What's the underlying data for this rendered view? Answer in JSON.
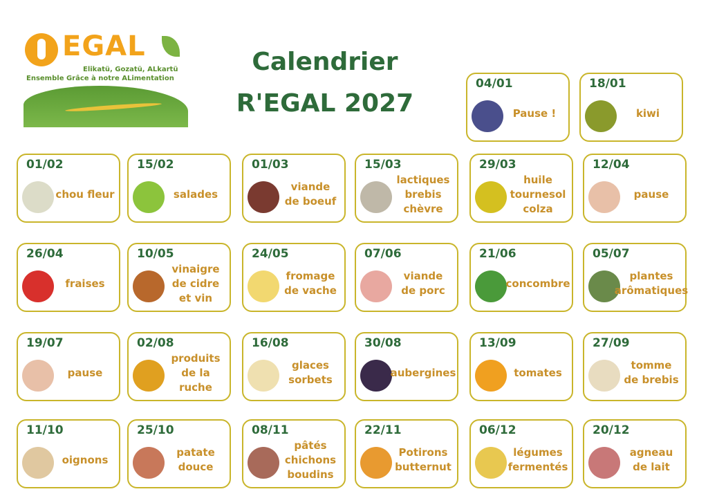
{
  "logo": {
    "brand": "EGAL",
    "tagline1": "Elikatü, Gozatü, ALkartü",
    "tagline2": "Ensemble Grâce à notre ALimentation"
  },
  "title": "Calendrier\nR'EGAL 2027",
  "colors": {
    "date": "#2e6b3a",
    "label": "#c8902a",
    "border": "#c9b52a"
  },
  "entries": [
    {
      "date": "04/01",
      "label": "Pause !",
      "icon": "snowman-icon",
      "color": "#4a4f8c"
    },
    {
      "date": "18/01",
      "label": "kiwi",
      "icon": "kiwi-icon",
      "color": "#8a9a2c"
    },
    {
      "date": "01/02",
      "label": "chou fleur",
      "icon": "cauliflower-icon",
      "color": "#dcdcc8"
    },
    {
      "date": "15/02",
      "label": "salades",
      "icon": "lettuce-icon",
      "color": "#8cc43c"
    },
    {
      "date": "01/03",
      "label": "viande\nde boeuf",
      "icon": "beef-icon",
      "color": "#7a3a30"
    },
    {
      "date": "15/03",
      "label": "lactiques\nbrebis\nchèvre",
      "icon": "cheese-icon",
      "color": "#bfb8a8"
    },
    {
      "date": "29/03",
      "label": "huile\ntournesol\ncolza",
      "icon": "oil-bottle-icon",
      "color": "#d4c020"
    },
    {
      "date": "12/04",
      "label": "pause",
      "icon": "pause-hands-icon",
      "color": "#e8c0a8"
    },
    {
      "date": "26/04",
      "label": "fraises",
      "icon": "strawberry-icon",
      "color": "#d8302c"
    },
    {
      "date": "10/05",
      "label": "vinaigre\nde cidre\net vin",
      "icon": "vinegar-icon",
      "color": "#b8682c"
    },
    {
      "date": "24/05",
      "label": "fromage\nde vache",
      "icon": "cheese-icon",
      "color": "#f2d870"
    },
    {
      "date": "07/06",
      "label": "viande\nde porc",
      "icon": "pork-icon",
      "color": "#e8a8a0"
    },
    {
      "date": "21/06",
      "label": "concombre",
      "icon": "cucumber-icon",
      "color": "#4a9a3a"
    },
    {
      "date": "05/07",
      "label": "plantes\narômatiques",
      "icon": "herb-icon",
      "color": "#6a8a4a"
    },
    {
      "date": "19/07",
      "label": "pause",
      "icon": "pause-hands-icon",
      "color": "#e8c0a8"
    },
    {
      "date": "02/08",
      "label": "produits\nde la ruche",
      "icon": "honeycomb-icon",
      "color": "#e0a020"
    },
    {
      "date": "16/08",
      "label": "glaces\nsorbets",
      "icon": "ice-cream-icon",
      "color": "#efe0b0"
    },
    {
      "date": "30/08",
      "label": "aubergines",
      "icon": "eggplant-icon",
      "color": "#3a2a4a"
    },
    {
      "date": "13/09",
      "label": "tomates",
      "icon": "tomato-icon",
      "color": "#f0a020"
    },
    {
      "date": "27/09",
      "label": "tomme\nde brebis",
      "icon": "cheese-icon",
      "color": "#e8dcc0"
    },
    {
      "date": "11/10",
      "label": "oignons",
      "icon": "onion-icon",
      "color": "#e0c8a0"
    },
    {
      "date": "25/10",
      "label": "patate\ndouce",
      "icon": "sweet-potato-icon",
      "color": "#c8785a"
    },
    {
      "date": "08/11",
      "label": "pâtés\nchichons\nboudins",
      "icon": "charcuterie-icon",
      "color": "#a86a5a"
    },
    {
      "date": "22/11",
      "label": "Potirons\nbutternut",
      "icon": "squash-icon",
      "color": "#e89a30"
    },
    {
      "date": "06/12",
      "label": "légumes\nfermentés",
      "icon": "jar-icon",
      "color": "#e8c850"
    },
    {
      "date": "20/12",
      "label": "agneau\nde lait",
      "icon": "lamb-icon",
      "color": "#c87878"
    }
  ]
}
